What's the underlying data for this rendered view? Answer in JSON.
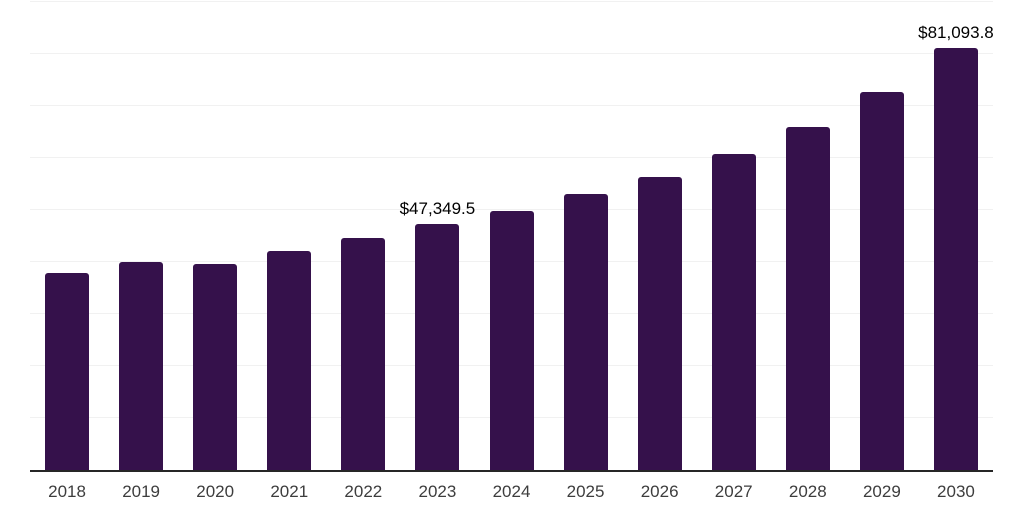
{
  "chart_data": {
    "type": "bar",
    "categories": [
      "2018",
      "2019",
      "2020",
      "2021",
      "2022",
      "2023",
      "2024",
      "2025",
      "2026",
      "2027",
      "2028",
      "2029",
      "2030"
    ],
    "values": [
      37900,
      40000,
      39700,
      42100,
      44700,
      47349.5,
      49900,
      53100,
      56400,
      60700,
      66000,
      72600,
      81093.8
    ],
    "title": "",
    "xlabel": "",
    "ylabel": "",
    "ylim": [
      0,
      90000
    ],
    "gridline_step": 10000,
    "grid": true,
    "legend": "none",
    "annotations": [
      {
        "index": 5,
        "text": "$47,349.5"
      },
      {
        "index": 12,
        "text": "$81,093.8"
      }
    ],
    "colors": {
      "bar": "#35114B",
      "grid": "#f1f1f1",
      "axis": "#262626",
      "tick_label": "#3d3d3d",
      "data_label": "#000000",
      "background": "#ffffff"
    }
  }
}
